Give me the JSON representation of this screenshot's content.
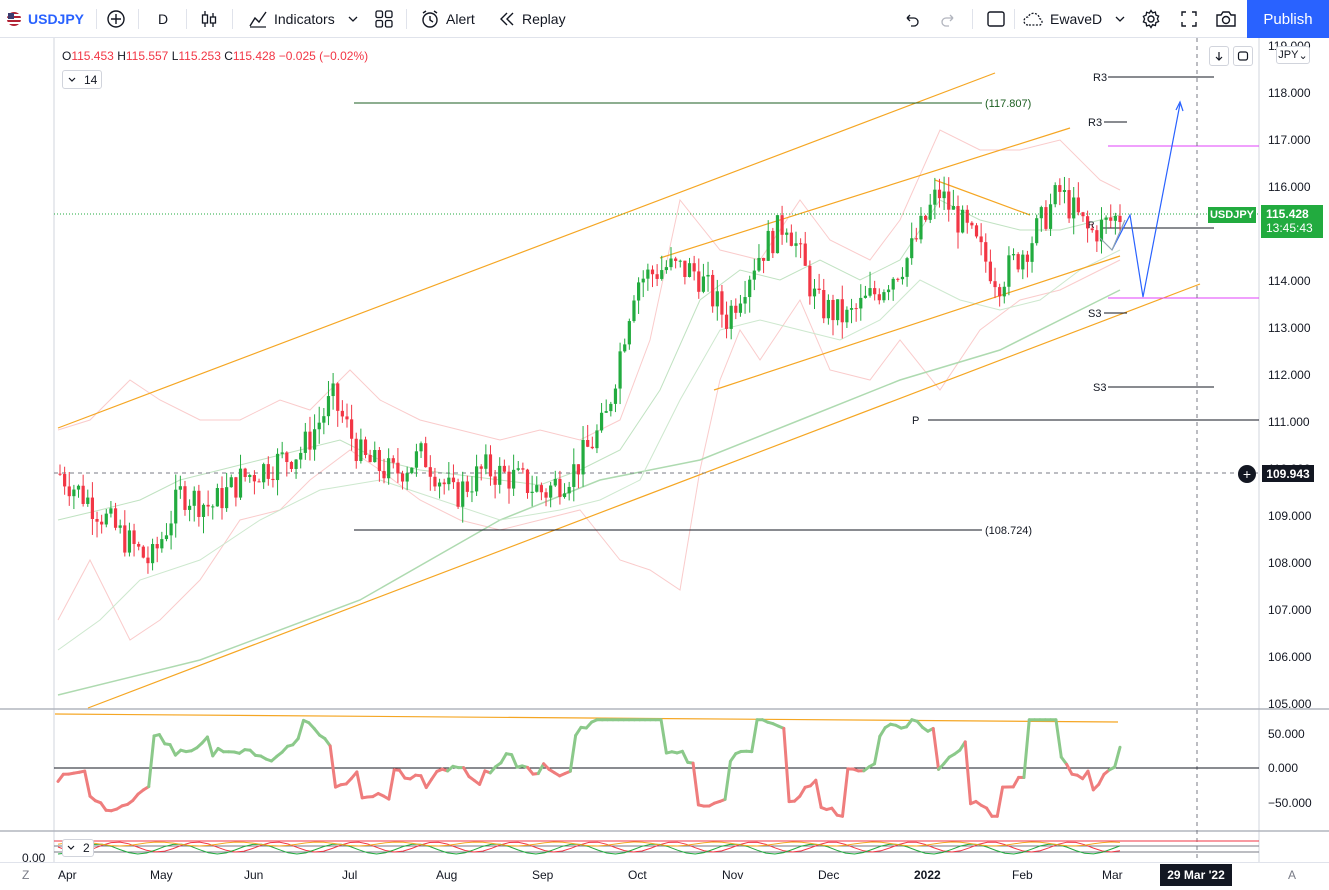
{
  "toolbar": {
    "symbol": "USDJPY",
    "interval": "D",
    "indicators_label": "Indicators",
    "alert_label": "Alert",
    "replay_label": "Replay",
    "layout_name": "EwaveD",
    "publish_label": "Publish"
  },
  "legend": {
    "o_label": "O",
    "o_value": "115.453",
    "h_label": "H",
    "h_value": "115.557",
    "l_label": "L",
    "l_value": "115.253",
    "c_label": "C",
    "c_value": "115.428",
    "change": "−0.025 (−0.02%)",
    "period": "14",
    "osc2_period": "2"
  },
  "price_axis": {
    "currency": "JPY",
    "ticks": [
      "118.000",
      "117.000",
      "116.000",
      "115.000",
      "114.000",
      "113.000",
      "112.000",
      "111.000",
      "110.000",
      "109.000",
      "108.000",
      "107.000",
      "106.000",
      "105.000"
    ],
    "top_partial": "119.000",
    "osc_ticks": [
      "50.000",
      "0.000",
      "−50.000"
    ],
    "last_price": "115.428",
    "countdown": "13:45:43",
    "symbol_tag": "USDJPY",
    "crosshair_price": "109.943",
    "zero_left": "0.00"
  },
  "annotations": {
    "level_high": "(117.807)",
    "level_low": "(108.724)",
    "r3_a": "R3",
    "r3_b": "R3",
    "s3_a": "S3",
    "s3_b": "S3",
    "pivot": "P",
    "r_small": "R"
  },
  "time_axis": {
    "labels": [
      "Apr",
      "May",
      "Jun",
      "Jul",
      "Aug",
      "Sep",
      "Oct",
      "Nov",
      "Dec",
      "2022",
      "Feb",
      "Mar"
    ],
    "crosshair_date": "29 Mar '22",
    "left_corner": "Z",
    "right_corner": "A"
  },
  "colors": {
    "up": "#22ab3f",
    "down": "#f23645",
    "channel": "#f5a623",
    "accent": "#2962ff",
    "pivot_magenta": "#e040fb"
  },
  "chart_data": {
    "type": "candlestick",
    "title": "",
    "xlabel": "",
    "ylabel": "",
    "ylim": [
      105.0,
      119.0
    ],
    "osc_ylim": [
      -75,
      75
    ],
    "x": [
      "Apr",
      "May",
      "Jun",
      "Jul",
      "Aug",
      "Sep",
      "Oct",
      "Nov",
      "Dec",
      "2022",
      "Feb",
      "Mar"
    ],
    "close_path": [
      109.9,
      109.3,
      108.6,
      108.0,
      109.5,
      109.2,
      109.8,
      110.1,
      110.4,
      111.5,
      110.2,
      109.9,
      110.3,
      109.4,
      110.0,
      109.8,
      109.5,
      110.0,
      111.0,
      114.0,
      114.3,
      114.2,
      113.2,
      114.5,
      115.3,
      113.5,
      113.2,
      113.8,
      114.5,
      115.9,
      115.0,
      114.0,
      114.8,
      115.9,
      115.0,
      115.4
    ]
  }
}
